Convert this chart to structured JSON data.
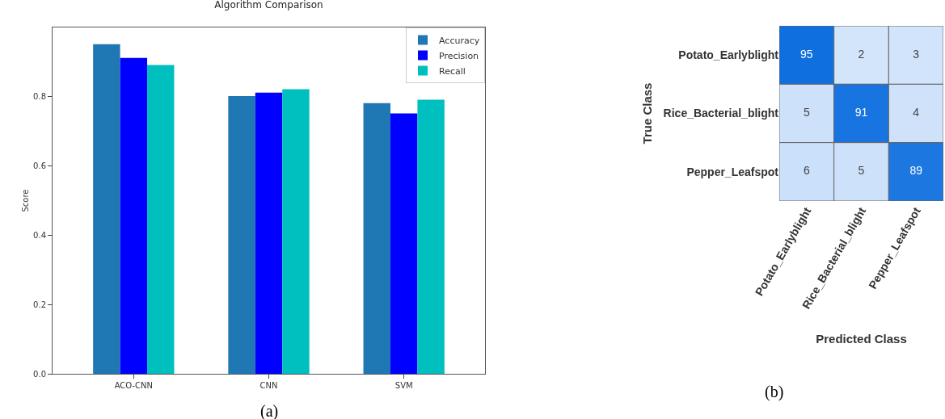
{
  "chart_data": [
    {
      "type": "bar",
      "title": "Algorithm Comparison",
      "ylabel": "Score",
      "categories": [
        "ACO-CNN",
        "CNN",
        "SVM"
      ],
      "series": [
        {
          "name": "Accuracy",
          "color": "#1f77b4",
          "values": [
            0.95,
            0.8,
            0.78
          ]
        },
        {
          "name": "Precision",
          "color": "#0000ff",
          "values": [
            0.91,
            0.81,
            0.75
          ]
        },
        {
          "name": "Recall",
          "color": "#00bfbf",
          "values": [
            0.89,
            0.82,
            0.79
          ]
        }
      ],
      "ylim": [
        0,
        0.998
      ],
      "yticks": [
        {
          "value": 0,
          "label": "0.0"
        },
        {
          "value": 0.2,
          "label": "0.2"
        },
        {
          "value": 0.4,
          "label": "0.4"
        },
        {
          "value": 0.6,
          "label": "0.6"
        },
        {
          "value": 0.8,
          "label": "0.8"
        }
      ],
      "grid": false,
      "legend": "top right",
      "annotations": [
        "(a)"
      ]
    },
    {
      "type": "heatmap",
      "xlabel": "Predicted Class",
      "ylabel": "True Class",
      "categories": [
        "Potato_Earlyblight",
        "Rice_Bacterial_blight",
        "Pepper_Leafspot"
      ],
      "y_categories": [
        "Potato_Earlyblight",
        "Rice_Bacterial_blight",
        "Pepper_Leafspot"
      ],
      "cells": [
        [
          95,
          2,
          3
        ],
        [
          5,
          91,
          4
        ],
        [
          6,
          5,
          89
        ]
      ],
      "data_labels": true,
      "annotations": [
        "(b)"
      ]
    }
  ]
}
